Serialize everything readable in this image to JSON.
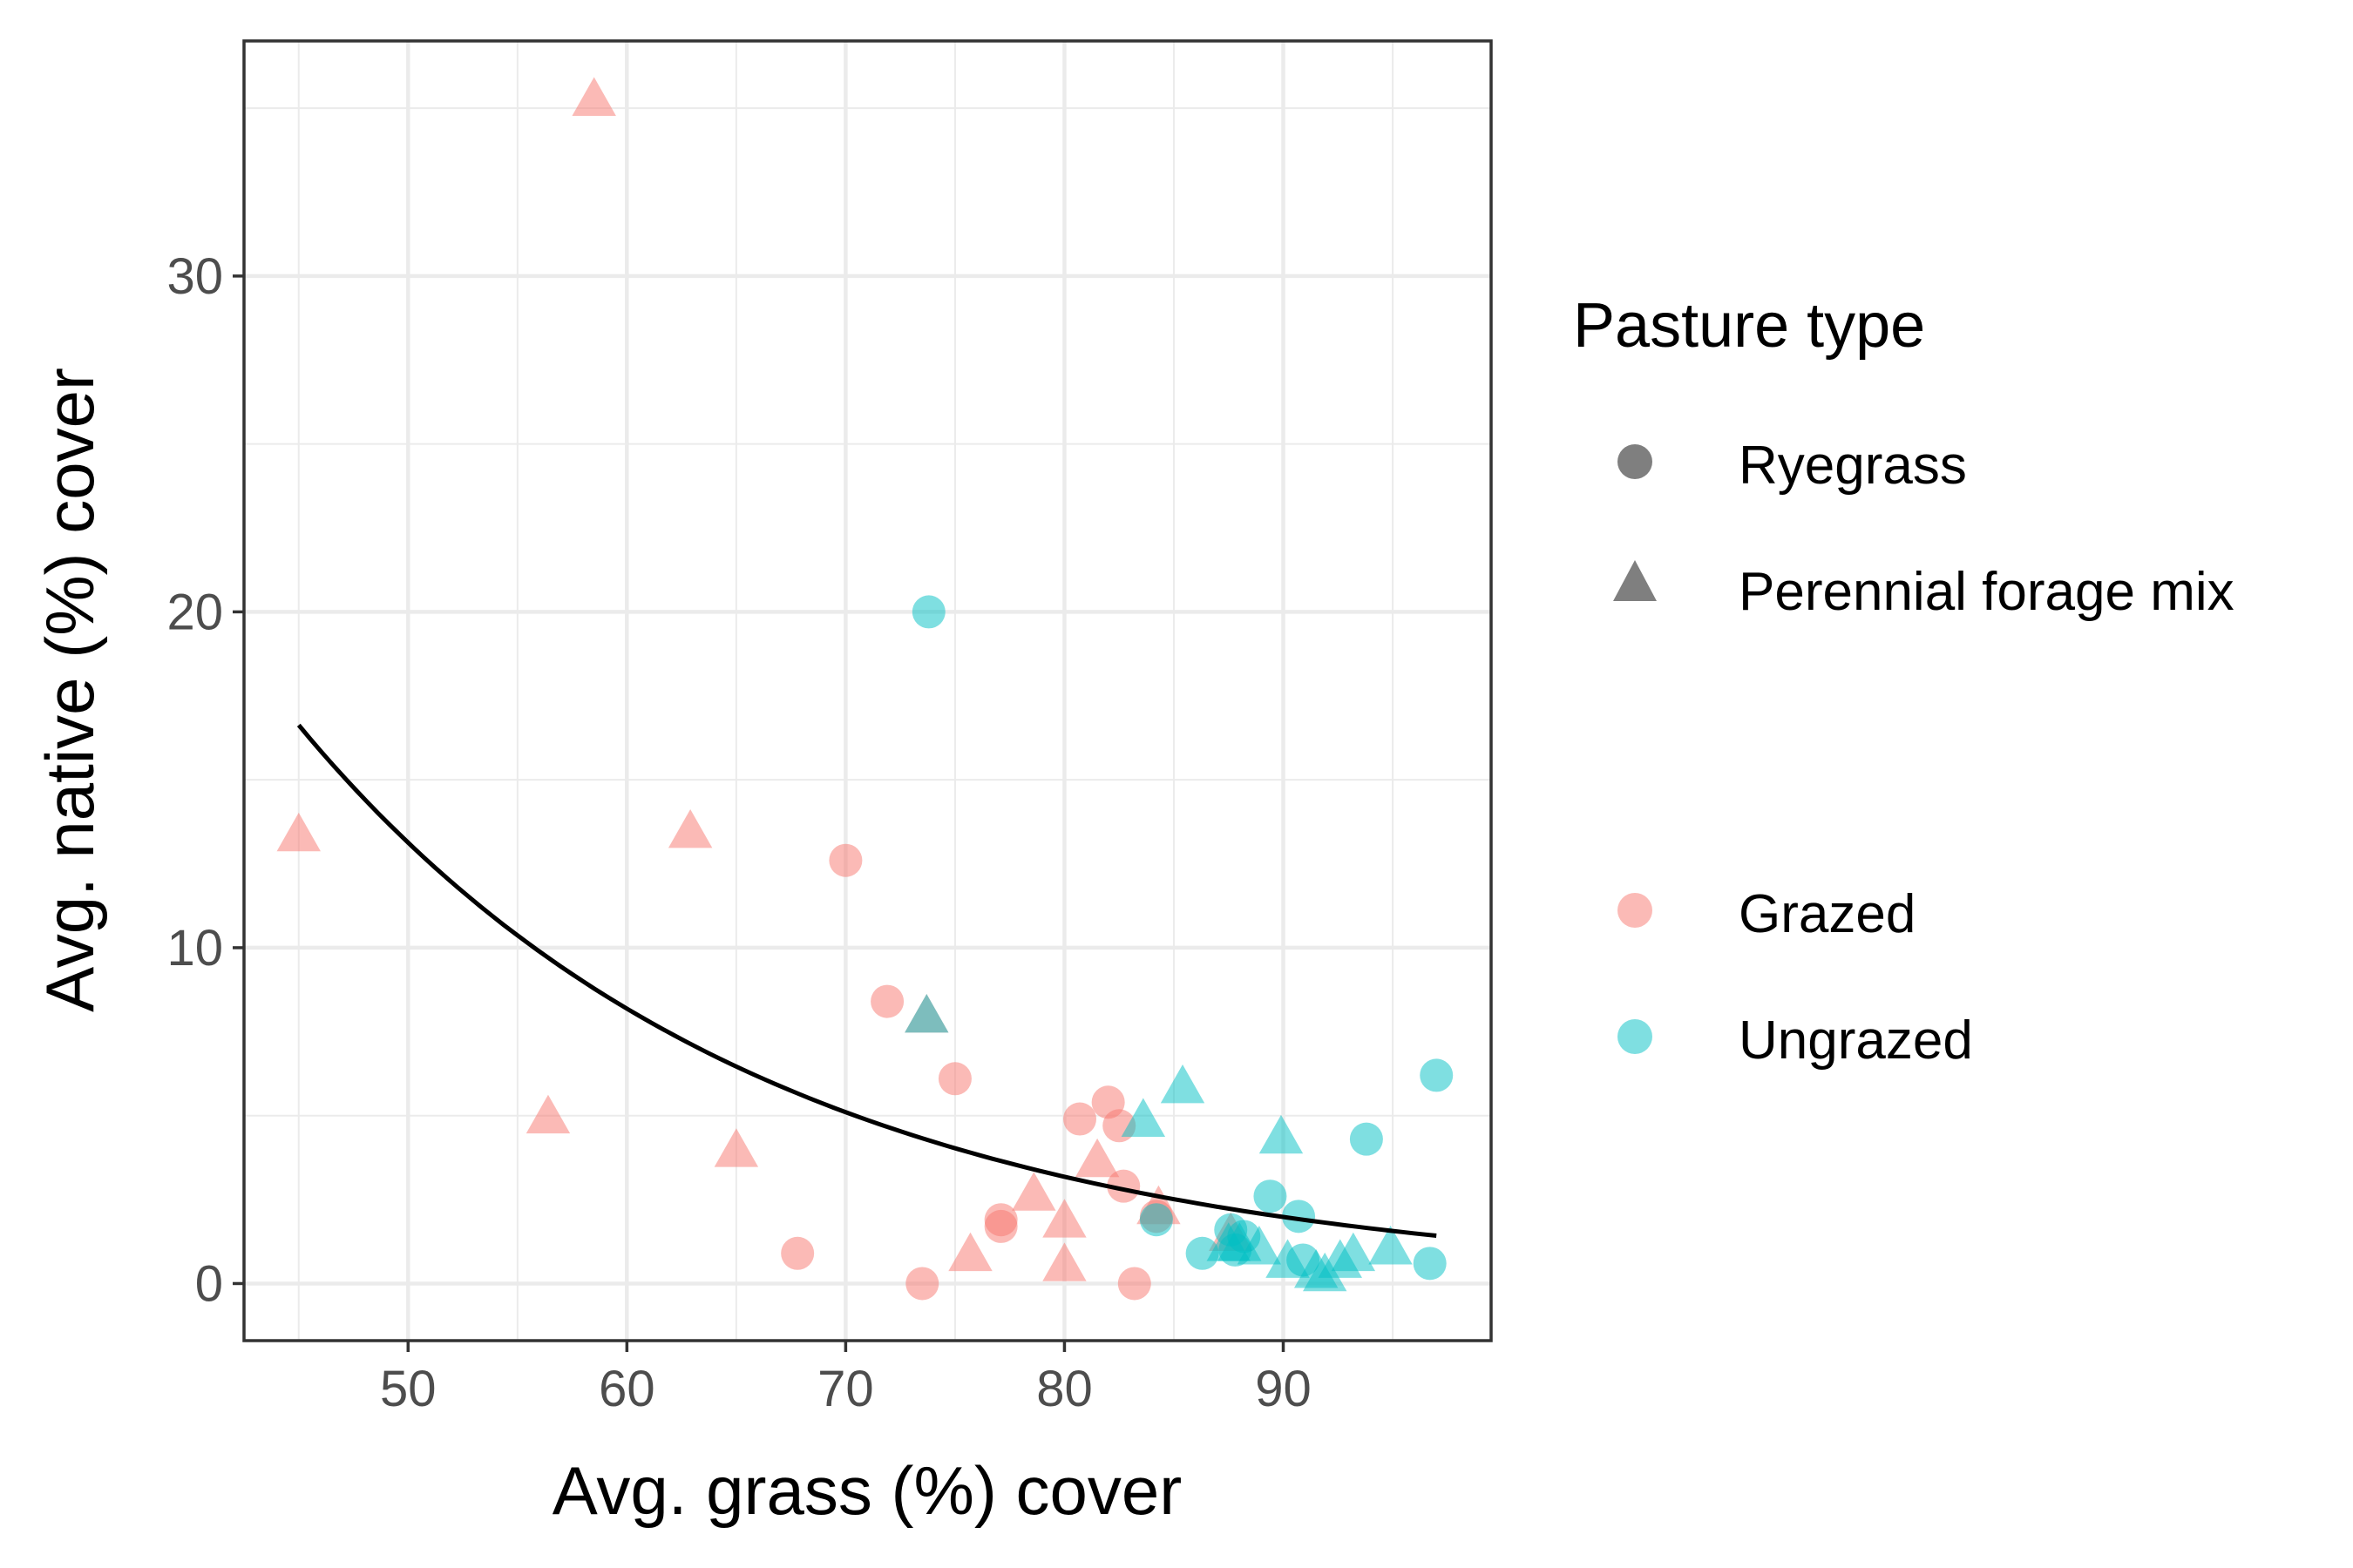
{
  "chart_data": {
    "type": "scatter",
    "xlabel": "Avg. grass (%) cover",
    "ylabel": "Avg. native (%) cover",
    "xlim": [
      42.5,
      99.5
    ],
    "ylim": [
      -1.7,
      37
    ],
    "xticks": [
      50,
      60,
      70,
      80,
      90
    ],
    "yticks": [
      0,
      10,
      20,
      30
    ],
    "grid": true,
    "legend_position": "right",
    "legend": {
      "shape_title": "Pasture type",
      "shapes": [
        {
          "label": "Ryegrass",
          "shape": "circle"
        },
        {
          "label": "Perennial forage mix",
          "shape": "triangle"
        }
      ],
      "colors": [
        {
          "label": "Grazed",
          "color": "#F8766D"
        },
        {
          "label": "Ungrazed",
          "color": "#00BFC4"
        }
      ]
    },
    "colors": {
      "Grazed": "#F8766D",
      "Ungrazed": "#00BFC4",
      "fit": "#000000"
    },
    "series": [
      {
        "name": "Grazed",
        "shape": "circle",
        "points": [
          [
            70.0,
            12.6
          ],
          [
            71.9,
            8.4
          ],
          [
            75.0,
            6.1
          ],
          [
            77.1,
            1.9
          ],
          [
            77.1,
            1.7
          ],
          [
            67.8,
            0.9
          ],
          [
            73.5,
            0.0
          ],
          [
            80.7,
            4.9
          ],
          [
            82.0,
            5.4
          ],
          [
            82.5,
            4.7
          ],
          [
            82.7,
            2.9
          ],
          [
            83.2,
            0.0
          ],
          [
            84.2,
            2.0
          ]
        ]
      },
      {
        "name": "Grazed",
        "shape": "triangle",
        "points": [
          [
            45.0,
            13.4
          ],
          [
            58.5,
            35.3
          ],
          [
            62.9,
            13.5
          ],
          [
            56.4,
            5.0
          ],
          [
            65.0,
            4.0
          ],
          [
            73.7,
            8.0
          ],
          [
            75.7,
            0.9
          ],
          [
            78.6,
            2.7
          ],
          [
            80.0,
            1.9
          ],
          [
            80.0,
            0.6
          ],
          [
            81.5,
            3.7
          ],
          [
            84.3,
            2.3
          ],
          [
            87.6,
            1.5
          ]
        ]
      },
      {
        "name": "Ungrazed",
        "shape": "circle",
        "points": [
          [
            73.8,
            20.0
          ],
          [
            84.2,
            1.9
          ],
          [
            86.3,
            0.9
          ],
          [
            87.6,
            1.6
          ],
          [
            88.2,
            1.4
          ],
          [
            87.8,
            1.0
          ],
          [
            89.4,
            2.6
          ],
          [
            90.7,
            2.0
          ],
          [
            90.9,
            0.7
          ],
          [
            93.8,
            4.3
          ],
          [
            96.7,
            0.6
          ],
          [
            97.0,
            6.2
          ]
        ]
      },
      {
        "name": "Ungrazed",
        "shape": "triangle",
        "points": [
          [
            73.7,
            8.0
          ],
          [
            83.6,
            4.9
          ],
          [
            85.4,
            5.9
          ],
          [
            89.9,
            4.4
          ],
          [
            87.5,
            1.2
          ],
          [
            88.0,
            1.2
          ],
          [
            88.9,
            1.1
          ],
          [
            90.2,
            0.7
          ],
          [
            91.5,
            0.4
          ],
          [
            91.9,
            0.3
          ],
          [
            92.6,
            0.7
          ],
          [
            93.2,
            0.9
          ],
          [
            94.9,
            1.1
          ]
        ]
      }
    ],
    "fit_line": {
      "x": [
        45,
        97
      ],
      "a": 139.39,
      "b": 0.04725
    }
  }
}
